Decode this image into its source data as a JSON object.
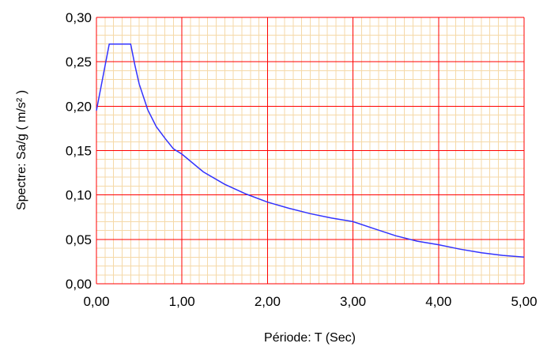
{
  "chart_data": {
    "type": "line",
    "xlabel": "Période: T (Sec)",
    "ylabel": "Spectre: Sa/g ( m/s² )",
    "xlim": [
      0,
      5
    ],
    "ylim": [
      0,
      0.3
    ],
    "x_ticks": [
      "0,00",
      "1,00",
      "2,00",
      "3,00",
      "4,00",
      "5,00"
    ],
    "y_ticks": [
      "0,00",
      "0,05",
      "0,10",
      "0,15",
      "0,20",
      "0,25",
      "0,30"
    ],
    "grid": true,
    "colors": {
      "major_grid": "#ff0000",
      "minor_grid": "#f5d9a8",
      "line": "#3333ff",
      "plot_background": "#ffffff"
    },
    "series": [
      {
        "x": [
          0,
          0.15,
          0.2,
          0.4,
          0.45,
          0.5,
          0.6,
          0.7,
          0.8,
          0.9,
          1.0,
          1.25,
          1.5,
          1.75,
          2.0,
          2.25,
          2.5,
          2.75,
          3.0,
          3.25,
          3.5,
          3.75,
          4.0,
          4.25,
          4.5,
          4.75,
          5.0
        ],
        "y": [
          0.195,
          0.27,
          0.27,
          0.27,
          0.246,
          0.225,
          0.196,
          0.177,
          0.164,
          0.152,
          0.146,
          0.126,
          0.112,
          0.101,
          0.092,
          0.085,
          0.079,
          0.074,
          0.07,
          0.062,
          0.054,
          0.048,
          0.044,
          0.039,
          0.035,
          0.032,
          0.03
        ]
      }
    ]
  }
}
